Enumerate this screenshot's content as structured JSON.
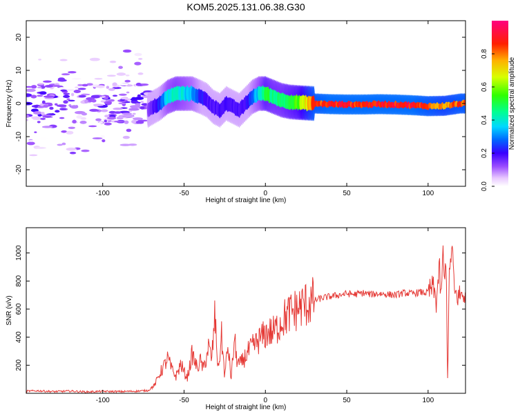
{
  "title": "KOM5.2025.131.06.38.G30",
  "colors": {
    "snr_line": "#e53935",
    "axis": "#000000",
    "background": "#ffffff"
  },
  "chart_data": [
    {
      "type": "heatmap",
      "title": "",
      "xlabel": "Height of straight line (km)",
      "ylabel": "Frequency (Hz)",
      "xlim": [
        -147,
        123
      ],
      "ylim": [
        -25,
        25
      ],
      "xticks": [
        -100,
        -50,
        0,
        50,
        100
      ],
      "yticks": [
        -20,
        -10,
        0,
        10,
        20
      ],
      "colorbar": {
        "label": "Normalized spectral amplitude",
        "range": [
          0,
          1
        ],
        "ticks": [
          "0.0",
          "0.2",
          "0.4",
          "0.6",
          "0.8"
        ],
        "tick_values": [
          0.0,
          0.2,
          0.4,
          0.6,
          0.8
        ],
        "colormap": "rainbow (white to purple, blue, cyan, green, yellow, red, magenta)"
      },
      "ridge": {
        "description": "dominant frequency track vs height",
        "x": [
          -72,
          -65,
          -60,
          -55,
          -50,
          -45,
          -40,
          -36,
          -32,
          -28,
          -24,
          -20,
          -16,
          -12,
          -8,
          -4,
          0,
          5,
          10,
          15,
          20,
          30,
          40,
          50,
          60,
          70,
          80,
          90,
          100,
          110,
          120
        ],
        "freq": [
          -2,
          0,
          2,
          3,
          3,
          3,
          2,
          1,
          -1,
          -2,
          0,
          -1,
          -2,
          0,
          2,
          3,
          3,
          2,
          1,
          0.5,
          0.3,
          0,
          -0.2,
          -0.3,
          -0.3,
          -0.2,
          -0.3,
          -0.5,
          -0.8,
          -0.7,
          0
        ],
        "amplitude": [
          0.15,
          0.25,
          0.4,
          0.45,
          0.4,
          0.35,
          0.25,
          0.2,
          0.2,
          0.2,
          0.2,
          0.2,
          0.2,
          0.2,
          0.3,
          0.4,
          0.55,
          0.5,
          0.5,
          0.55,
          0.6,
          0.9,
          0.95,
          0.95,
          0.95,
          0.95,
          0.95,
          0.95,
          0.9,
          0.85,
          0.9
        ]
      },
      "noise_region": {
        "x_range": [
          -147,
          -72
        ],
        "freq_range": [
          -17,
          17
        ],
        "amplitude_range": [
          0.0,
          0.15
        ]
      }
    },
    {
      "type": "line",
      "title": "",
      "xlabel": "Height of straight line (km)",
      "ylabel": "SNR (v/v)",
      "xlim": [
        -147,
        123
      ],
      "ylim": [
        0,
        1180
      ],
      "xticks": [
        -100,
        -50,
        0,
        50,
        100
      ],
      "yticks": [
        200,
        400,
        600,
        800,
        1000
      ],
      "grid": false,
      "series": [
        {
          "x": [
            -147,
            -140,
            -130,
            -120,
            -110,
            -100,
            -90,
            -80,
            -72,
            -68,
            -65,
            -62,
            -60,
            -58,
            -55,
            -52,
            -50,
            -48,
            -45,
            -42,
            -40,
            -38,
            -35,
            -33,
            -31,
            -29,
            -27,
            -25,
            -23,
            -21,
            -19,
            -18,
            -16,
            -14,
            -12,
            -10,
            -8,
            -6,
            -4,
            -2,
            0,
            2,
            4,
            6,
            8,
            10,
            12,
            15,
            18,
            22,
            26,
            30,
            35,
            40,
            45,
            50,
            55,
            60,
            65,
            70,
            75,
            80,
            85,
            90,
            95,
            100,
            103,
            105,
            107,
            108,
            109,
            110,
            111,
            112,
            113,
            114,
            115,
            116,
            118,
            120,
            123
          ],
          "y": [
            15,
            18,
            12,
            16,
            10,
            14,
            12,
            15,
            20,
            60,
            140,
            200,
            250,
            180,
            120,
            210,
            150,
            110,
            280,
            180,
            230,
            170,
            330,
            240,
            550,
            160,
            410,
            120,
            340,
            100,
            400,
            260,
            200,
            230,
            270,
            300,
            330,
            350,
            380,
            400,
            420,
            440,
            430,
            450,
            480,
            520,
            540,
            570,
            590,
            620,
            640,
            660,
            680,
            690,
            700,
            710,
            705,
            715,
            705,
            710,
            705,
            700,
            715,
            710,
            720,
            715,
            760,
            650,
            900,
            620,
            1050,
            750,
            1000,
            120,
            800,
            980,
            1040,
            720,
            690,
            700,
            705
          ],
          "color": "#e53935"
        }
      ]
    }
  ]
}
